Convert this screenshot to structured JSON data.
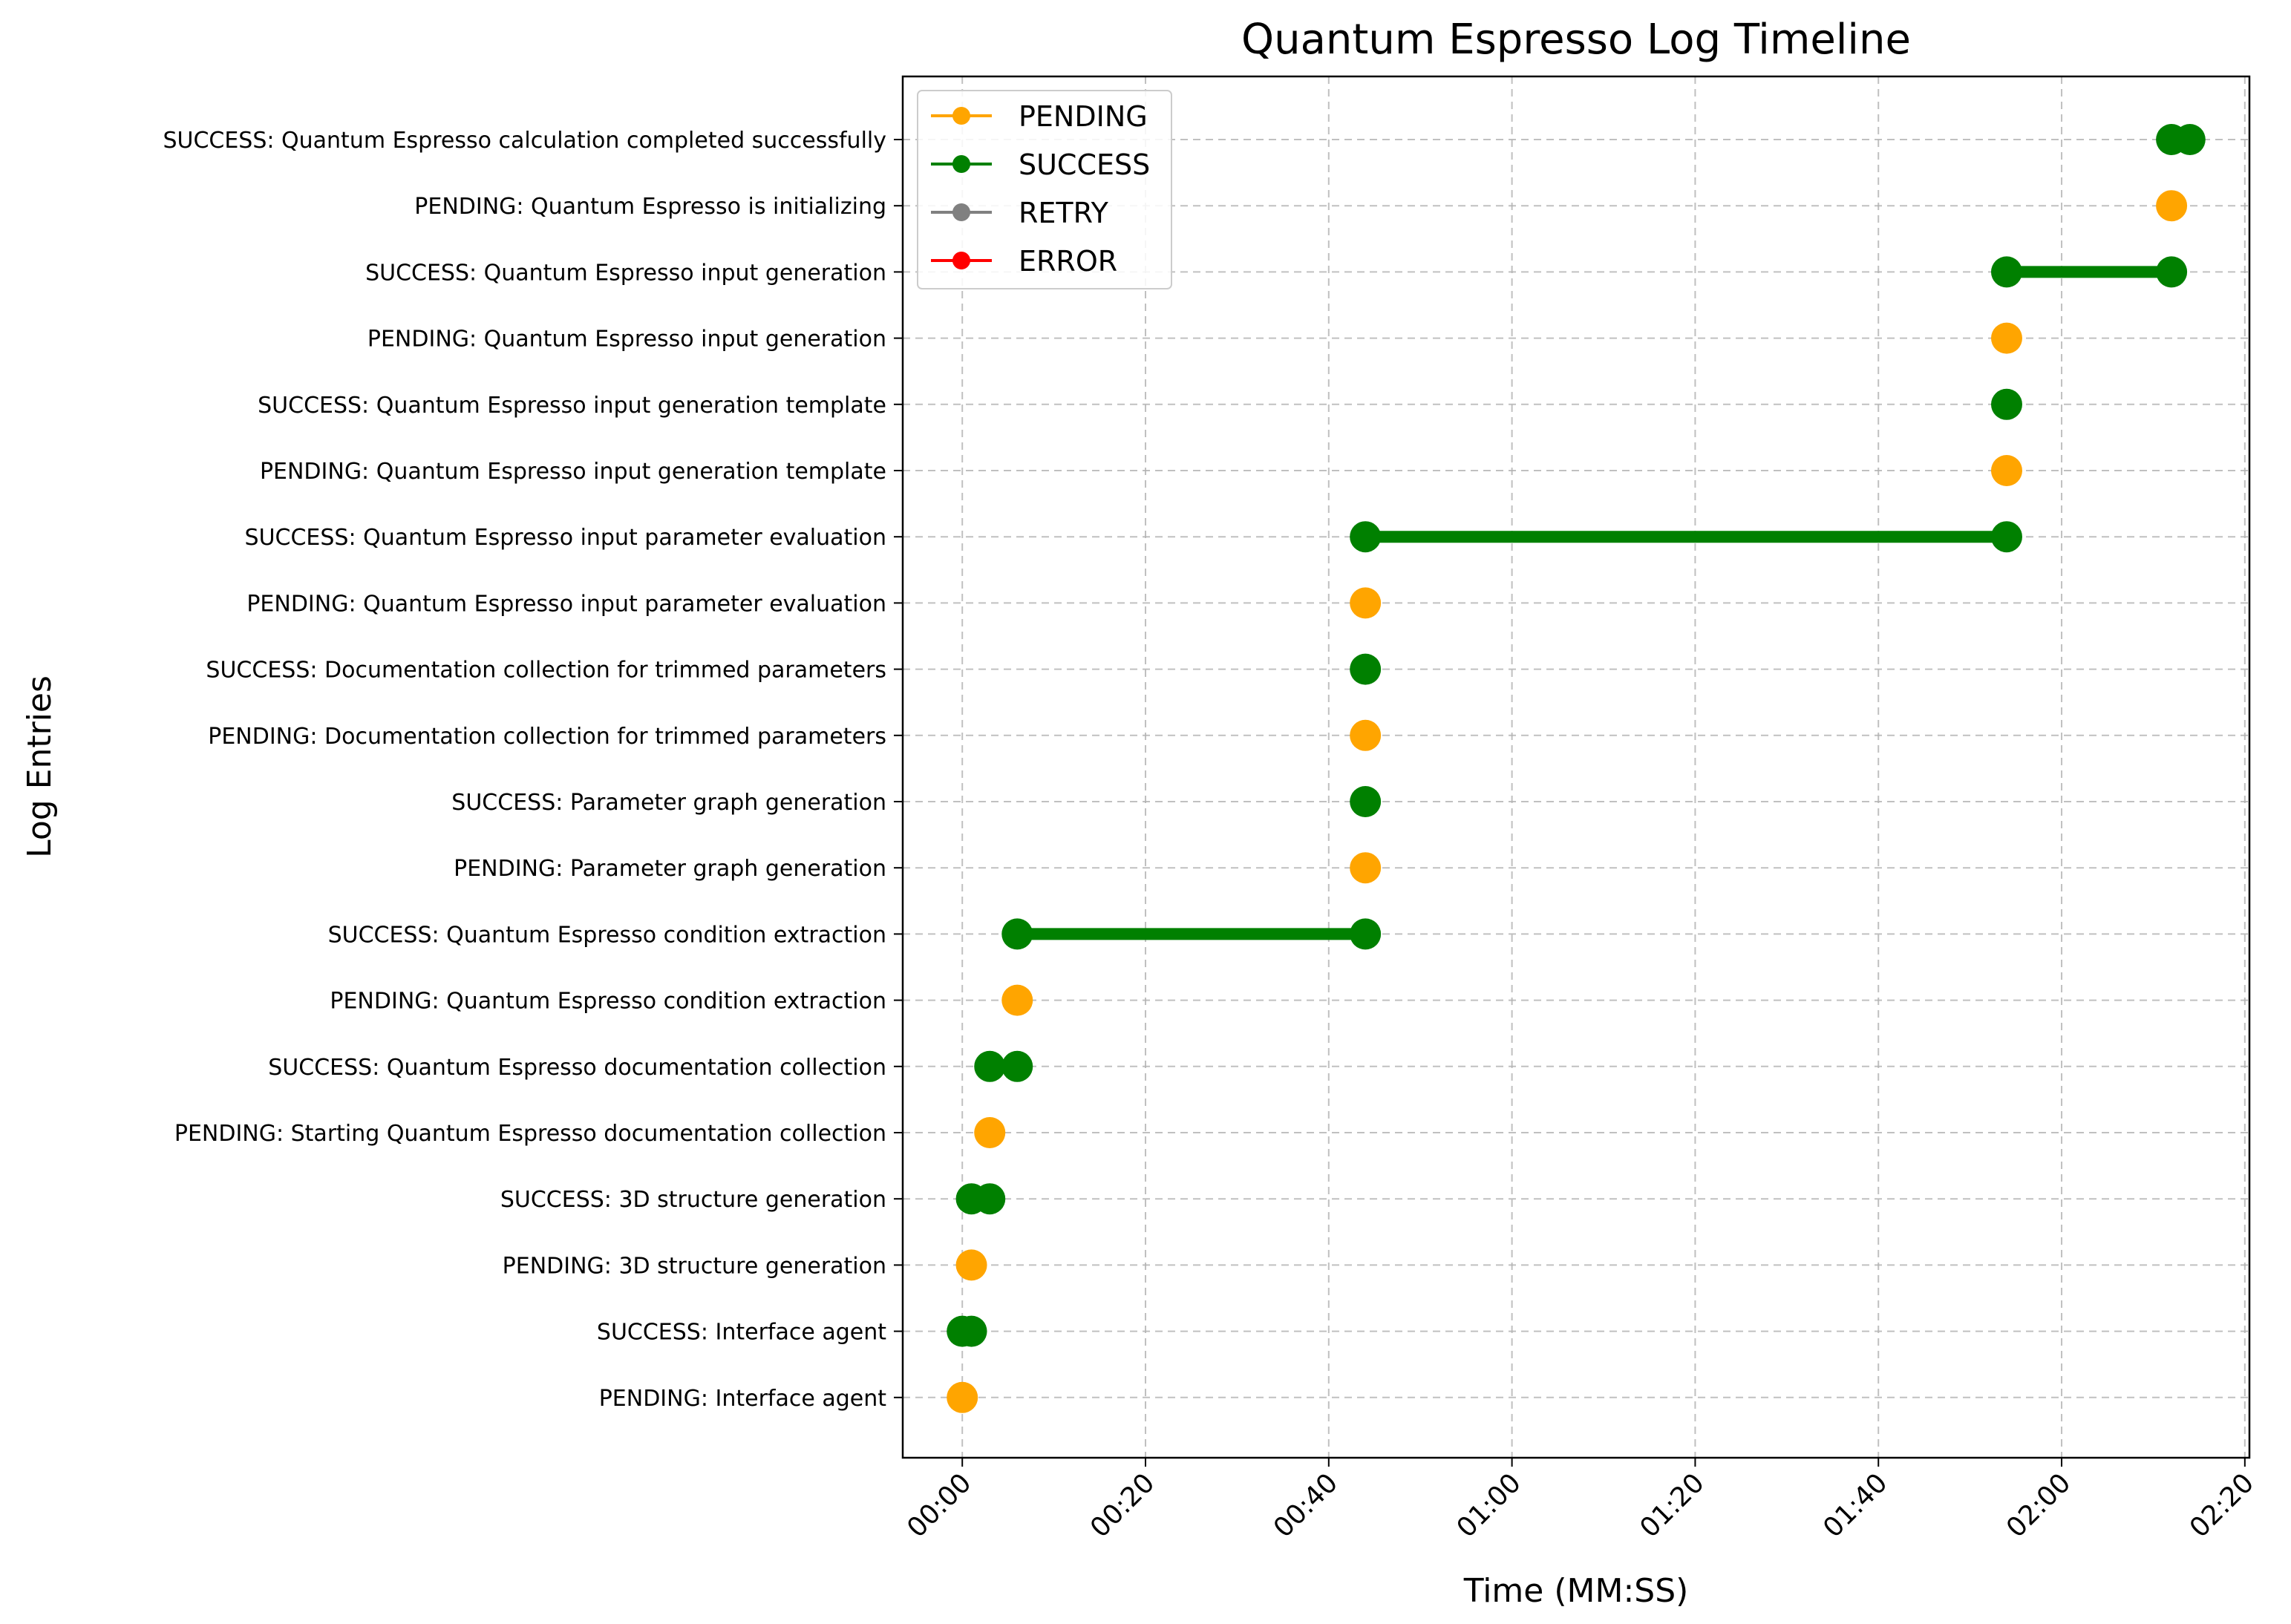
{
  "chart_data": {
    "type": "scatter",
    "title": "Quantum Espresso Log Timeline",
    "xlabel": "Time (MM:SS)",
    "ylabel": "Log Entries",
    "xlim": [
      -6.5,
      140.5
    ],
    "x_ticks": [
      0,
      20,
      40,
      60,
      80,
      100,
      120,
      140
    ],
    "x_tick_labels": [
      "00:00",
      "00:20",
      "00:40",
      "01:00",
      "01:20",
      "01:40",
      "02:00",
      "02:20"
    ],
    "grid": true,
    "legend_position": "top-left",
    "status_colors": {
      "PENDING": "#FFA500",
      "SUCCESS": "#008000",
      "RETRY": "#808080",
      "ERROR": "#FF0000"
    },
    "legend": [
      "PENDING",
      "SUCCESS",
      "RETRY",
      "ERROR"
    ],
    "entries": [
      {
        "label": "PENDING: Interface agent",
        "status": "PENDING",
        "x": [
          0
        ]
      },
      {
        "label": "SUCCESS: Interface agent",
        "status": "SUCCESS",
        "x": [
          0,
          1
        ]
      },
      {
        "label": "PENDING: 3D structure generation",
        "status": "PENDING",
        "x": [
          1
        ]
      },
      {
        "label": "SUCCESS: 3D structure generation",
        "status": "SUCCESS",
        "x": [
          1,
          3
        ]
      },
      {
        "label": "PENDING: Starting Quantum Espresso documentation collection",
        "status": "PENDING",
        "x": [
          3
        ]
      },
      {
        "label": "SUCCESS: Quantum Espresso documentation collection",
        "status": "SUCCESS",
        "x": [
          3,
          6
        ]
      },
      {
        "label": "PENDING: Quantum Espresso condition extraction",
        "status": "PENDING",
        "x": [
          6
        ]
      },
      {
        "label": "SUCCESS: Quantum Espresso condition extraction",
        "status": "SUCCESS",
        "x": [
          6,
          44
        ]
      },
      {
        "label": "PENDING: Parameter graph generation",
        "status": "PENDING",
        "x": [
          44
        ]
      },
      {
        "label": "SUCCESS: Parameter graph generation",
        "status": "SUCCESS",
        "x": [
          44
        ]
      },
      {
        "label": "PENDING: Documentation collection for trimmed parameters",
        "status": "PENDING",
        "x": [
          44
        ]
      },
      {
        "label": "SUCCESS: Documentation collection for trimmed parameters",
        "status": "SUCCESS",
        "x": [
          44
        ]
      },
      {
        "label": "PENDING: Quantum Espresso input parameter evaluation",
        "status": "PENDING",
        "x": [
          44
        ]
      },
      {
        "label": "SUCCESS: Quantum Espresso input parameter evaluation",
        "status": "SUCCESS",
        "x": [
          44,
          114
        ]
      },
      {
        "label": "PENDING: Quantum Espresso input generation template",
        "status": "PENDING",
        "x": [
          114
        ]
      },
      {
        "label": "SUCCESS: Quantum Espresso input generation template",
        "status": "SUCCESS",
        "x": [
          114
        ]
      },
      {
        "label": "PENDING: Quantum Espresso input generation",
        "status": "PENDING",
        "x": [
          114
        ]
      },
      {
        "label": "SUCCESS: Quantum Espresso input generation",
        "status": "SUCCESS",
        "x": [
          114,
          132
        ]
      },
      {
        "label": "PENDING: Quantum Espresso is initializing",
        "status": "PENDING",
        "x": [
          132
        ]
      },
      {
        "label": "SUCCESS: Quantum Espresso calculation completed successfully",
        "status": "SUCCESS",
        "x": [
          132,
          134
        ]
      }
    ]
  }
}
